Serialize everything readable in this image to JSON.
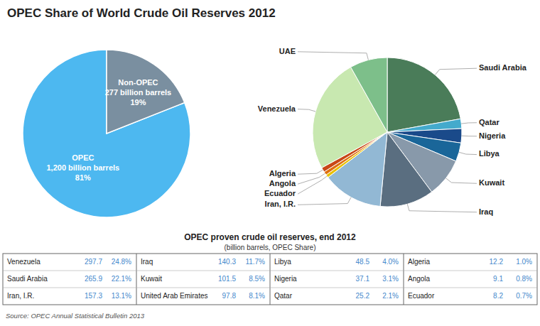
{
  "chart_data": [
    {
      "type": "pie",
      "title": "OPEC Share of World Crude Oil Reserves 2012",
      "categories": [
        "OPEC",
        "Non-OPEC"
      ],
      "values": [
        81,
        19
      ],
      "value_labels": [
        "81%",
        "19%"
      ],
      "reserve_labels": [
        "1,200 billion barrels",
        "277 billion barrels"
      ],
      "colors": [
        "#4db8f0",
        "#7a8fa0"
      ]
    },
    {
      "type": "pie",
      "categories": [
        "Saudi Arabia",
        "Qatar",
        "Nigeria",
        "Libya",
        "Kuwait",
        "Iraq",
        "Iran, I.R.",
        "Ecuador",
        "Angola",
        "Algeria",
        "Venezuela",
        "UAE"
      ],
      "values": [
        265.9,
        25.2,
        37.1,
        48.5,
        101.5,
        140.3,
        157.3,
        8.2,
        9.1,
        12.2,
        297.7,
        97.8
      ],
      "colors": [
        "#4a7c59",
        "#44aacc",
        "#1a4a8a",
        "#1a6699",
        "#8899aa",
        "#5a6e80",
        "#92b8d4",
        "#e8c000",
        "#e07010",
        "#c84818",
        "#c8e8b0",
        "#7dbf8a"
      ]
    },
    {
      "type": "table",
      "title": "OPEC proven crude oil reserves, end 2012",
      "subtitle": "(billion barrels, OPEC Share)",
      "rows": [
        [
          "Venezuela",
          "297.7",
          "24.8%",
          "Iraq",
          "140.3",
          "11.7%",
          "Libya",
          "48.5",
          "4.0%",
          "Algeria",
          "12.2",
          "1.0%"
        ],
        [
          "Saudi Arabia",
          "265.9",
          "22.1%",
          "Kuwait",
          "101.5",
          "8.5%",
          "Nigeria",
          "37.1",
          "3.1%",
          "Angola",
          "9.1",
          "0.8%"
        ],
        [
          "Iran, I.R.",
          "157.3",
          "13.1%",
          "United Arab Emirates",
          "97.8",
          "8.1%",
          "Qatar",
          "25.2",
          "2.1%",
          "Ecuador",
          "8.2",
          "0.7%"
        ]
      ],
      "color": "#4488cc",
      "source": "Source: OPEC Annual Statistical Bulletin 2013"
    }
  ]
}
